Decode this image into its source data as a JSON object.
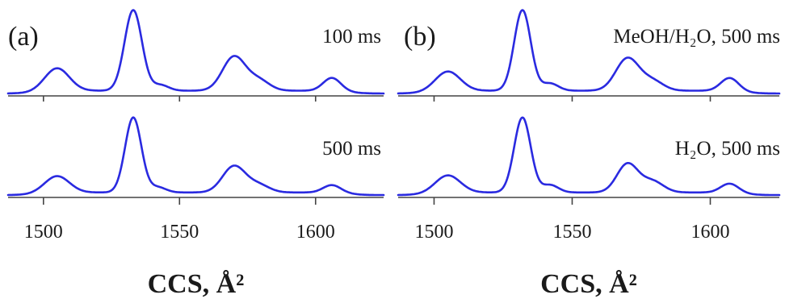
{
  "chart_data": [
    {
      "type": "line",
      "panel": "(a)",
      "xlabel": "CCS, Å²",
      "xlim": [
        1487,
        1625
      ],
      "xticks": [
        1500,
        1550,
        1600
      ],
      "grid": false,
      "traces": [
        {
          "label": "100 ms",
          "peaks": [
            {
              "x": 1505,
              "h": 0.28,
              "w": 4.5
            },
            {
              "x": 1533,
              "h": 1.0,
              "w": 3.2
            },
            {
              "x": 1543,
              "h": 0.07,
              "w": 3.0
            },
            {
              "x": 1570,
              "h": 0.42,
              "w": 4.2
            },
            {
              "x": 1579,
              "h": 0.13,
              "w": 4.0
            },
            {
              "x": 1606,
              "h": 0.16,
              "w": 3.2
            }
          ]
        },
        {
          "label": "500 ms",
          "peaks": [
            {
              "x": 1505,
              "h": 0.22,
              "w": 4.5
            },
            {
              "x": 1533,
              "h": 1.0,
              "w": 3.0
            },
            {
              "x": 1542,
              "h": 0.07,
              "w": 3.0
            },
            {
              "x": 1570,
              "h": 0.35,
              "w": 4.2
            },
            {
              "x": 1579,
              "h": 0.1,
              "w": 4.0
            },
            {
              "x": 1606,
              "h": 0.1,
              "w": 3.2
            }
          ]
        }
      ]
    },
    {
      "type": "line",
      "panel": "(b)",
      "xlabel": "CCS, Å²",
      "xlim": [
        1487,
        1625
      ],
      "xticks": [
        1500,
        1550,
        1600
      ],
      "grid": false,
      "traces": [
        {
          "label": "MeOH/H₂O, 500 ms",
          "peaks": [
            {
              "x": 1505,
              "h": 0.24,
              "w": 4.5
            },
            {
              "x": 1532,
              "h": 1.0,
              "w": 3.0
            },
            {
              "x": 1542,
              "h": 0.09,
              "w": 3.0
            },
            {
              "x": 1570,
              "h": 0.4,
              "w": 4.2
            },
            {
              "x": 1579,
              "h": 0.12,
              "w": 4.0
            },
            {
              "x": 1607,
              "h": 0.16,
              "w": 3.2
            }
          ]
        },
        {
          "label": "H₂O, 500 ms",
          "peaks": [
            {
              "x": 1505,
              "h": 0.23,
              "w": 4.5
            },
            {
              "x": 1532,
              "h": 1.0,
              "w": 3.0
            },
            {
              "x": 1542,
              "h": 0.1,
              "w": 3.0
            },
            {
              "x": 1570,
              "h": 0.38,
              "w": 3.8
            },
            {
              "x": 1579,
              "h": 0.15,
              "w": 4.0
            },
            {
              "x": 1607,
              "h": 0.12,
              "w": 3.2
            }
          ]
        }
      ]
    }
  ]
}
